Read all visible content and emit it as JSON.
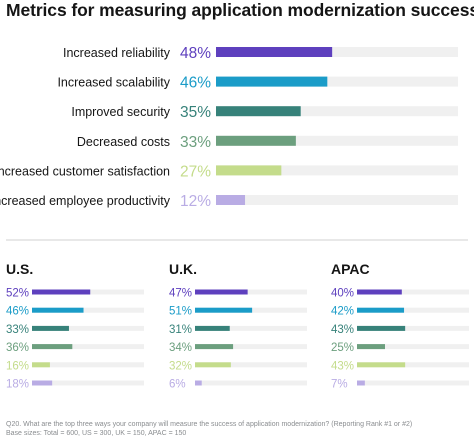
{
  "title": "Metrics for measuring application modernization success",
  "footnote": {
    "line1": "Q20. What are the top three ways your company will measure the success of application modernization? (Reporting Rank #1 or #2)",
    "line2": "Base sizes: Total = 600, US = 300, UK = 150, APAC = 150"
  },
  "chart_data": [
    {
      "type": "bar",
      "orientation": "horizontal",
      "categories": [
        "Increased reliability",
        "Increased scalability",
        "Improved security",
        "Decreased costs",
        "Increased customer satisfaction",
        "Increased employee productivity"
      ],
      "values": [
        48,
        46,
        35,
        33,
        27,
        12
      ],
      "value_labels": [
        "48%",
        "46%",
        "35%",
        "33%",
        "27%",
        "12%"
      ],
      "xlim": [
        0,
        100
      ],
      "colors": [
        "#5e40be",
        "#1b9cc8",
        "#37827a",
        "#6c9f7e",
        "#c4dc8b",
        "#b9ace4"
      ],
      "track_color": "#f0f0f0"
    },
    {
      "type": "bar",
      "orientation": "horizontal",
      "title": "U.S.",
      "values": [
        52,
        46,
        33,
        36,
        16,
        18
      ],
      "value_labels": [
        "52%",
        "46%",
        "33%",
        "36%",
        "16%",
        "18%"
      ],
      "xlim": [
        0,
        100
      ]
    },
    {
      "type": "bar",
      "orientation": "horizontal",
      "title": "U.K.",
      "values": [
        47,
        51,
        31,
        34,
        32,
        6
      ],
      "value_labels": [
        "47%",
        "51%",
        "31%",
        "34%",
        "32%",
        "6%"
      ],
      "xlim": [
        0,
        100
      ]
    },
    {
      "type": "bar",
      "orientation": "horizontal",
      "title": "APAC",
      "values": [
        40,
        42,
        43,
        25,
        43,
        7
      ],
      "value_labels": [
        "40%",
        "42%",
        "43%",
        "25%",
        "43%",
        "7%"
      ],
      "xlim": [
        0,
        100
      ]
    }
  ]
}
